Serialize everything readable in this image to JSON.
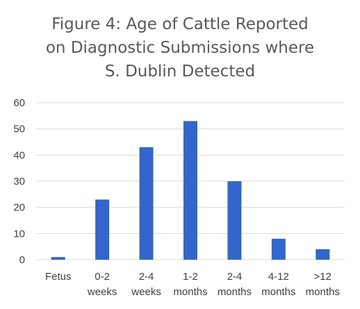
{
  "chart_data": {
    "type": "bar",
    "title": "Figure 4: Age of Cattle Reported on Diagnostic Submissions where S. Dublin Detected",
    "title_lines": [
      "Figure 4: Age of Cattle Reported",
      "on Diagnostic  Submissions where",
      "S. Dublin Detected"
    ],
    "categories": [
      "Fetus",
      "0-2 weeks",
      "2-4 weeks",
      "1-2 months",
      "2-4 months",
      "4-12 months",
      ">12 months"
    ],
    "category_lines": [
      [
        "Fetus"
      ],
      [
        "0-2",
        "weeks"
      ],
      [
        "2-4",
        "weeks"
      ],
      [
        "1-2",
        "months"
      ],
      [
        "2-4",
        "months"
      ],
      [
        "4-12",
        "months"
      ],
      [
        ">12",
        "months"
      ]
    ],
    "values": [
      1,
      23,
      43,
      53,
      30,
      8,
      4
    ],
    "ylim": [
      0,
      60
    ],
    "yticks": [
      "0",
      "10",
      "20",
      "30",
      "40",
      "50",
      "60"
    ],
    "xlabel": "",
    "ylabel": "",
    "grid": true,
    "legend": "none",
    "colors": {
      "bar": "#3366CC",
      "grid": "#D9D9D9",
      "text": "#595959",
      "tick": "#404040"
    }
  }
}
